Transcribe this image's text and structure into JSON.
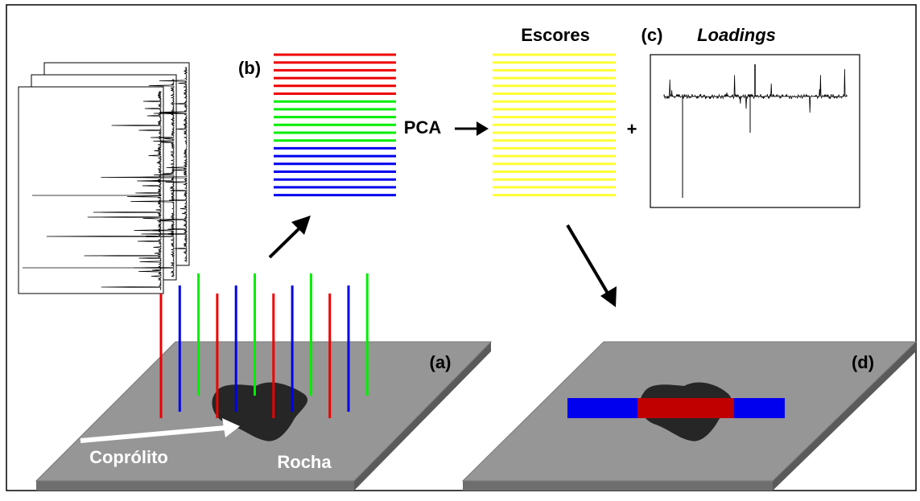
{
  "panel_labels": [
    "(a)",
    "(b)",
    "(c)",
    "(d)"
  ],
  "method": "PCA",
  "scores_label": "Escores",
  "loadings_label": "Loadings",
  "plus": "+",
  "annotations": {
    "coprolite": "Coprólito",
    "rock": "Rocha"
  }
}
